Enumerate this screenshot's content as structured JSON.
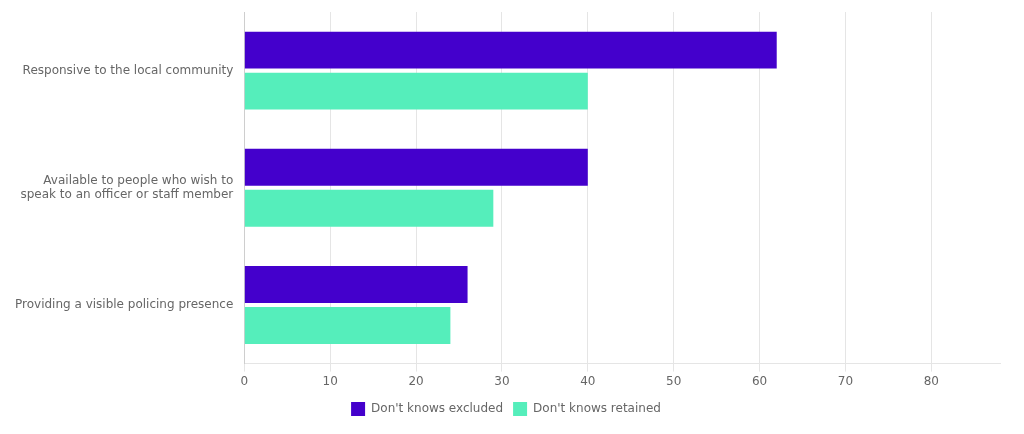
{
  "chart_data": {
    "type": "bar",
    "orientation": "horizontal",
    "categories": [
      "Providing a visible policing presence",
      "Available to people who wish to\nspeak to an officer or staff member",
      "Responsive to the local community"
    ],
    "series": [
      {
        "name": "Don't knows excluded",
        "color": "#4400CC",
        "values": [
          26,
          40,
          62
        ]
      },
      {
        "name": "Don't knows retained",
        "color": "#55EEBB",
        "values": [
          24,
          29,
          40
        ]
      }
    ],
    "xlim": [
      0,
      88
    ],
    "xticks": [
      0,
      10,
      20,
      30,
      40,
      50,
      60,
      70,
      80
    ],
    "grid": true,
    "legend": "bottom"
  }
}
